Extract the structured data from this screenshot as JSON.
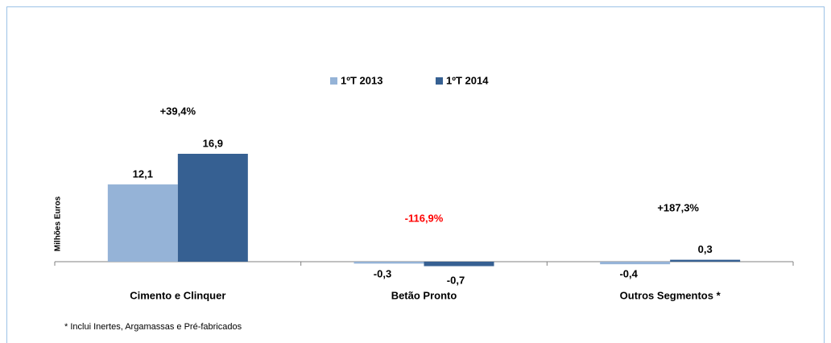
{
  "chart_data": {
    "type": "bar",
    "y_label": "Milhões Euros",
    "categories": [
      "Cimento e Clinquer",
      "Betão Pronto",
      "Outros Segmentos *"
    ],
    "series": [
      {
        "name": "1ºT 2013",
        "color": "#95b3d7",
        "values": [
          12.1,
          -0.3,
          -0.4
        ],
        "value_labels": [
          "12,1",
          "-0,3",
          "-0,4"
        ]
      },
      {
        "name": "1ºT 2014",
        "color": "#366092",
        "values": [
          16.9,
          -0.7,
          0.3
        ],
        "value_labels": [
          "16,9",
          "-0,7",
          "0,3"
        ]
      }
    ],
    "annotations": [
      {
        "text": "+39,4%",
        "color": "#000000"
      },
      {
        "text": "-116,9%",
        "color": "#ff0000"
      },
      {
        "text": "+187,3%",
        "color": "#000000"
      }
    ],
    "footnote": "* Inclui Inertes, Argamassas e Pré-fabricados"
  }
}
